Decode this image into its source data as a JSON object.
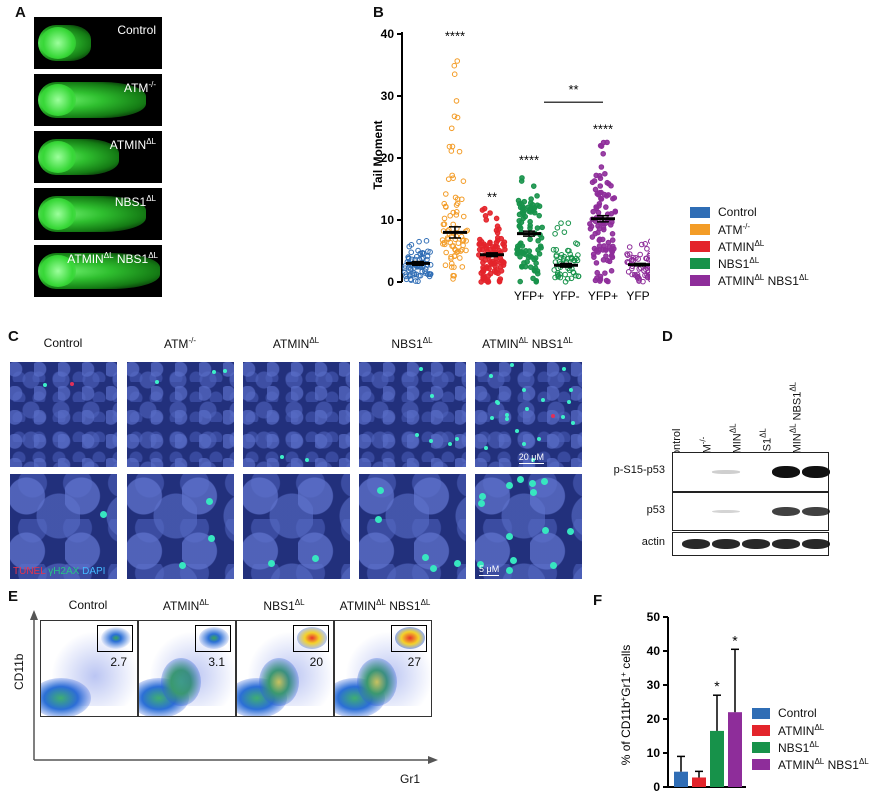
{
  "panels": {
    "a": "A",
    "b": "B",
    "c": "C",
    "d": "D",
    "e": "E",
    "f": "F"
  },
  "panel_a": {
    "labels": [
      "Control",
      "ATM",
      "ATMIN",
      "NBS1",
      "ATMIN"
    ],
    "sups": [
      "",
      "-/-",
      "ΔL",
      "ΔL",
      "ΔL"
    ],
    "extra_label": "NBS1",
    "extra_sup": "ΔL"
  },
  "panel_b": {
    "chart_data": {
      "type": "scatter",
      "ylabel": "Tail Moment",
      "ylim": [
        0,
        40
      ],
      "yticks": [
        "0",
        "10",
        "20",
        "30",
        "40"
      ],
      "groups": [
        {
          "name": "Control",
          "color": "#2f6db5",
          "mean": 3,
          "sem": 0.3,
          "min": 0,
          "max": 7.5,
          "n": 70,
          "sig": "",
          "xlabel": ""
        },
        {
          "name": "ATM-/-",
          "color": "#f39c27",
          "mean": 8,
          "sem": 0.9,
          "min": 0,
          "max": 38,
          "n": 80,
          "sig": "****",
          "xlabel": ""
        },
        {
          "name": "ATMIN ΔL",
          "color": "#e3242b",
          "mean": 4.4,
          "sem": 0.3,
          "min": 0,
          "max": 12,
          "n": 90,
          "sig": "**",
          "xlabel": ""
        },
        {
          "name": "NBS1 ΔL YFP+",
          "color": "#17924a",
          "mean": 7.8,
          "sem": 0.4,
          "min": 0,
          "max": 18,
          "n": 90,
          "sig": "****",
          "xlabel": "YFP+"
        },
        {
          "name": "NBS1 ΔL YFP-",
          "color": "#17924a",
          "mean": 2.7,
          "sem": 0.3,
          "min": 0,
          "max": 10,
          "n": 55,
          "sig": "",
          "xlabel": "YFP-"
        },
        {
          "name": "ATMIN ΔL NBS1 ΔL YFP+",
          "color": "#8e2d9a",
          "mean": 10.2,
          "sem": 0.5,
          "min": 0,
          "max": 23,
          "n": 100,
          "sig": "****",
          "xlabel": "YFP+"
        },
        {
          "name": "ATMIN ΔL NBS1 ΔL YFP-",
          "color": "#8e2d9a",
          "mean": 2.8,
          "sem": 0.2,
          "min": 0,
          "max": 7.5,
          "n": 60,
          "sig": "",
          "xlabel": "YFP-"
        }
      ],
      "bracket": {
        "from": 3,
        "to": 5,
        "label": "**",
        "y": 29
      }
    }
  },
  "legend": [
    {
      "label": "Control",
      "sup": "",
      "color": "#2f6db5"
    },
    {
      "label": "ATM",
      "sup": "-/-",
      "color": "#f39c27"
    },
    {
      "label": "ATMIN",
      "sup": "ΔL",
      "color": "#e3242b"
    },
    {
      "label": "NBS1",
      "sup": "ΔL",
      "color": "#17924a"
    },
    {
      "label": "ATMIN",
      "sup": "ΔL",
      "label2": "NBS1",
      "sup2": "ΔL",
      "color": "#8e2d9a"
    }
  ],
  "panel_c": {
    "columns": [
      {
        "label": "Control",
        "sup": ""
      },
      {
        "label": "ATM",
        "sup": "-/-"
      },
      {
        "label": "ATMIN",
        "sup": "ΔL"
      },
      {
        "label": "NBS1",
        "sup": "ΔL"
      },
      {
        "label": "ATMIN",
        "sup": "ΔL",
        "label2": "NBS1",
        "sup2": "ΔL"
      }
    ],
    "stain_tunel": "TUNEL",
    "stain_h2ax": "γH2AX",
    "stain_dapi": "DAPI",
    "scale_top": "20 μM",
    "scale_bottom": "5 μM"
  },
  "panel_d": {
    "lanes": [
      "Control",
      "ATM-/-",
      "ATMINΔL",
      "NBS1ΔL",
      "ATMINΔL NBS1ΔL"
    ],
    "rows": [
      {
        "label": "p-S15-p53",
        "intensity": [
          0,
          0.2,
          0,
          1,
          1
        ]
      },
      {
        "label": "p53",
        "intensity": [
          0,
          0.1,
          0,
          0.8,
          0.8
        ]
      },
      {
        "label": "actin",
        "intensity": [
          0.9,
          0.9,
          0.9,
          0.9,
          0.9
        ]
      }
    ]
  },
  "panel_e": {
    "columns": [
      {
        "label": "Control",
        "sup": "",
        "value": "2.7"
      },
      {
        "label": "ATMIN",
        "sup": "ΔL",
        "value": "3.1"
      },
      {
        "label": "NBS1",
        "sup": "ΔL",
        "value": "20"
      },
      {
        "label": "ATMIN",
        "sup": "ΔL",
        "label2": "NBS1",
        "sup2": "ΔL",
        "value": "27"
      }
    ],
    "ylabel": "CD11b",
    "xlabel": "Gr1"
  },
  "panel_f": {
    "chart_data": {
      "type": "bar",
      "ylabel_pre": "% of CD11b",
      "ylabel_mid": "Gr1",
      "ylabel_post": " cells",
      "ylim": [
        0,
        50
      ],
      "yticks": [
        "0",
        "10",
        "20",
        "30",
        "40",
        "50"
      ],
      "series": [
        {
          "name": "Control",
          "value": 4.5,
          "err": 4.5,
          "color": "#2f6db5",
          "sig": ""
        },
        {
          "name": "ATMIN ΔL",
          "value": 2.8,
          "err": 1.8,
          "color": "#e3242b",
          "sig": ""
        },
        {
          "name": "NBS1 ΔL",
          "value": 16.5,
          "err": 10.5,
          "color": "#17924a",
          "sig": "*"
        },
        {
          "name": "ATMIN ΔL NBS1 ΔL",
          "value": 22,
          "err": 18.5,
          "color": "#8e2d9a",
          "sig": "*"
        }
      ]
    },
    "legend": [
      {
        "label": "Control",
        "sup": "",
        "color": "#2f6db5"
      },
      {
        "label": "ATMIN",
        "sup": "ΔL",
        "color": "#e3242b"
      },
      {
        "label": "NBS1",
        "sup": "ΔL",
        "color": "#17924a"
      },
      {
        "label": "ATMIN",
        "sup": "ΔL",
        "label2": "NBS1",
        "sup2": "ΔL",
        "color": "#8e2d9a"
      }
    ]
  }
}
